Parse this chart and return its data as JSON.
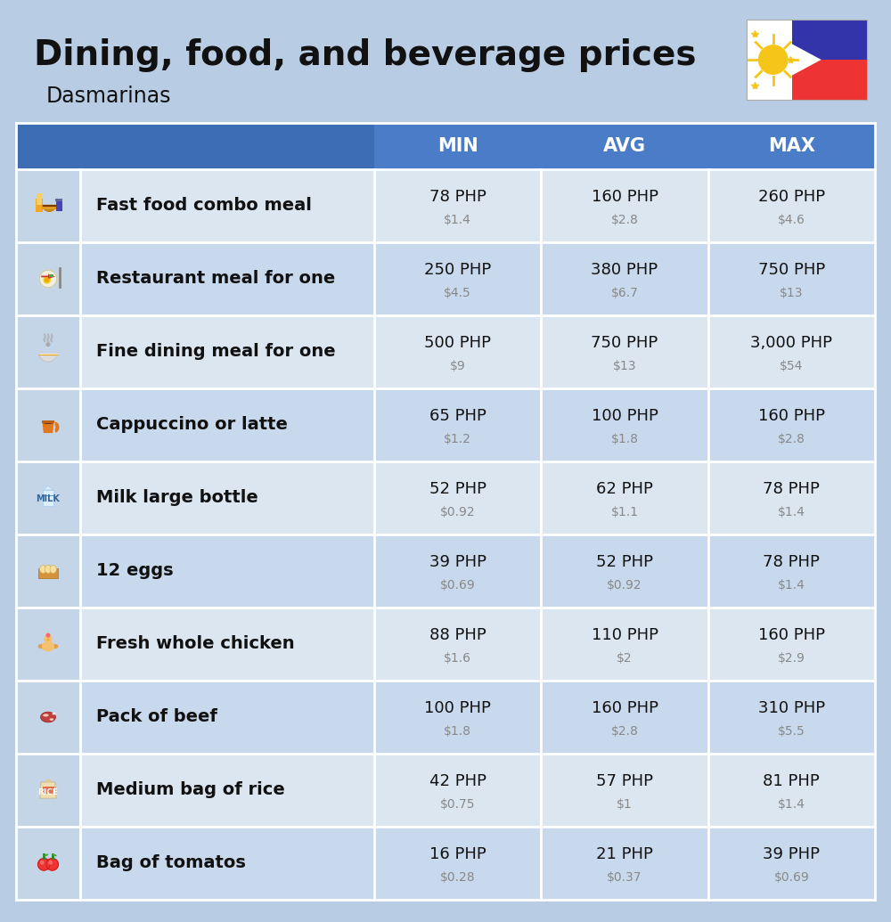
{
  "title": "Dining, food, and beverage prices",
  "subtitle": "Dasmarinas",
  "bg_color": "#b8cce4",
  "header_bg": "#4a7cc7",
  "header_text_color": "#ffffff",
  "row_bg_even": "#dce6f1",
  "row_bg_odd": "#c9d9ed",
  "icon_col_bg": "#c5d5e8",
  "col_headers": [
    "MIN",
    "AVG",
    "MAX"
  ],
  "items": [
    {
      "label": "Fast food combo meal",
      "min_php": "78 PHP",
      "min_usd": "$1.4",
      "avg_php": "160 PHP",
      "avg_usd": "$2.8",
      "max_php": "260 PHP",
      "max_usd": "$4.6"
    },
    {
      "label": "Restaurant meal for one",
      "min_php": "250 PHP",
      "min_usd": "$4.5",
      "avg_php": "380 PHP",
      "avg_usd": "$6.7",
      "max_php": "750 PHP",
      "max_usd": "$13"
    },
    {
      "label": "Fine dining meal for one",
      "min_php": "500 PHP",
      "min_usd": "$9",
      "avg_php": "750 PHP",
      "avg_usd": "$13",
      "max_php": "3,000 PHP",
      "max_usd": "$54"
    },
    {
      "label": "Cappuccino or latte",
      "min_php": "65 PHP",
      "min_usd": "$1.2",
      "avg_php": "100 PHP",
      "avg_usd": "$1.8",
      "max_php": "160 PHP",
      "max_usd": "$2.8"
    },
    {
      "label": "Milk large bottle",
      "min_php": "52 PHP",
      "min_usd": "$0.92",
      "avg_php": "62 PHP",
      "avg_usd": "$1.1",
      "max_php": "78 PHP",
      "max_usd": "$1.4"
    },
    {
      "label": "12 eggs",
      "min_php": "39 PHP",
      "min_usd": "$0.69",
      "avg_php": "52 PHP",
      "avg_usd": "$0.92",
      "max_php": "78 PHP",
      "max_usd": "$1.4"
    },
    {
      "label": "Fresh whole chicken",
      "min_php": "88 PHP",
      "min_usd": "$1.6",
      "avg_php": "110 PHP",
      "avg_usd": "$2",
      "max_php": "160 PHP",
      "max_usd": "$2.9"
    },
    {
      "label": "Pack of beef",
      "min_php": "100 PHP",
      "min_usd": "$1.8",
      "avg_php": "160 PHP",
      "avg_usd": "$2.8",
      "max_php": "310 PHP",
      "max_usd": "$5.5"
    },
    {
      "label": "Medium bag of rice",
      "min_php": "42 PHP",
      "min_usd": "$0.75",
      "avg_php": "57 PHP",
      "avg_usd": "$1",
      "max_php": "81 PHP",
      "max_usd": "$1.4"
    },
    {
      "label": "Bag of tomatos",
      "min_php": "16 PHP",
      "min_usd": "$0.28",
      "avg_php": "21 PHP",
      "avg_usd": "$0.37",
      "max_php": "39 PHP",
      "max_usd": "$0.69"
    }
  ]
}
